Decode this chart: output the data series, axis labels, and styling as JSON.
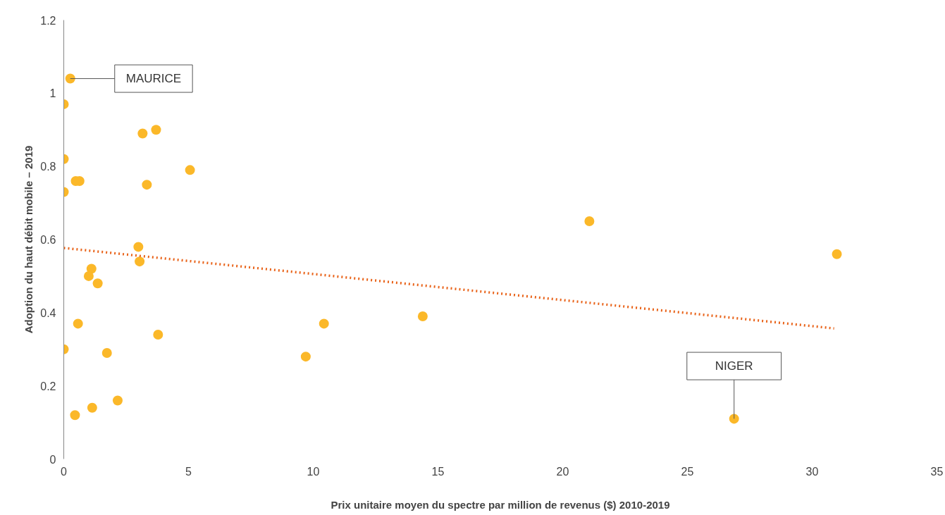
{
  "chart_data": {
    "type": "scatter",
    "xlabel": "Prix unitaire moyen du spectre par million de revenus ($) 2010-2019",
    "ylabel": "Adoption du haut débit mobile – 2019",
    "xlim": [
      0,
      35
    ],
    "xticks": [
      0,
      5,
      10,
      15,
      20,
      25,
      30,
      35
    ],
    "ylim": [
      0,
      1.2
    ],
    "yticks": [
      0,
      0.2,
      0.4,
      0.6,
      0.8,
      1,
      1.2
    ],
    "grid": false,
    "series": [
      {
        "marker": "circle",
        "color": "#fbb829",
        "x": [
          0.26,
          0,
          0,
          0,
          0.48,
          0.63,
          3.16,
          3.7,
          5.06,
          3.33,
          2.99,
          3.04,
          1.11,
          1.0,
          1.36,
          0.57,
          0,
          1.73,
          3.78,
          2.16,
          1.14,
          0.45,
          9.7,
          10.43,
          14.39,
          21.07,
          30.99,
          26.87
        ],
        "values": [
          1.04,
          0.97,
          0.82,
          0.73,
          0.76,
          0.76,
          0.89,
          0.9,
          0.79,
          0.75,
          0.58,
          0.54,
          0.52,
          0.5,
          0.48,
          0.37,
          0.3,
          0.29,
          0.34,
          0.16,
          0.14,
          0.12,
          0.28,
          0.37,
          0.39,
          0.65,
          0.56,
          0.11
        ]
      },
      {
        "type": "line",
        "color": "#e9641b",
        "line_style": "dotted",
        "x": [
          0,
          30.88
        ],
        "values": [
          0.577,
          0.357
        ]
      }
    ],
    "annotations": [
      {
        "text": "MAURICE",
        "x": 0.26,
        "y": 1.04
      },
      {
        "text": "NIGER",
        "x": 26.87,
        "y": 0.11
      }
    ]
  }
}
